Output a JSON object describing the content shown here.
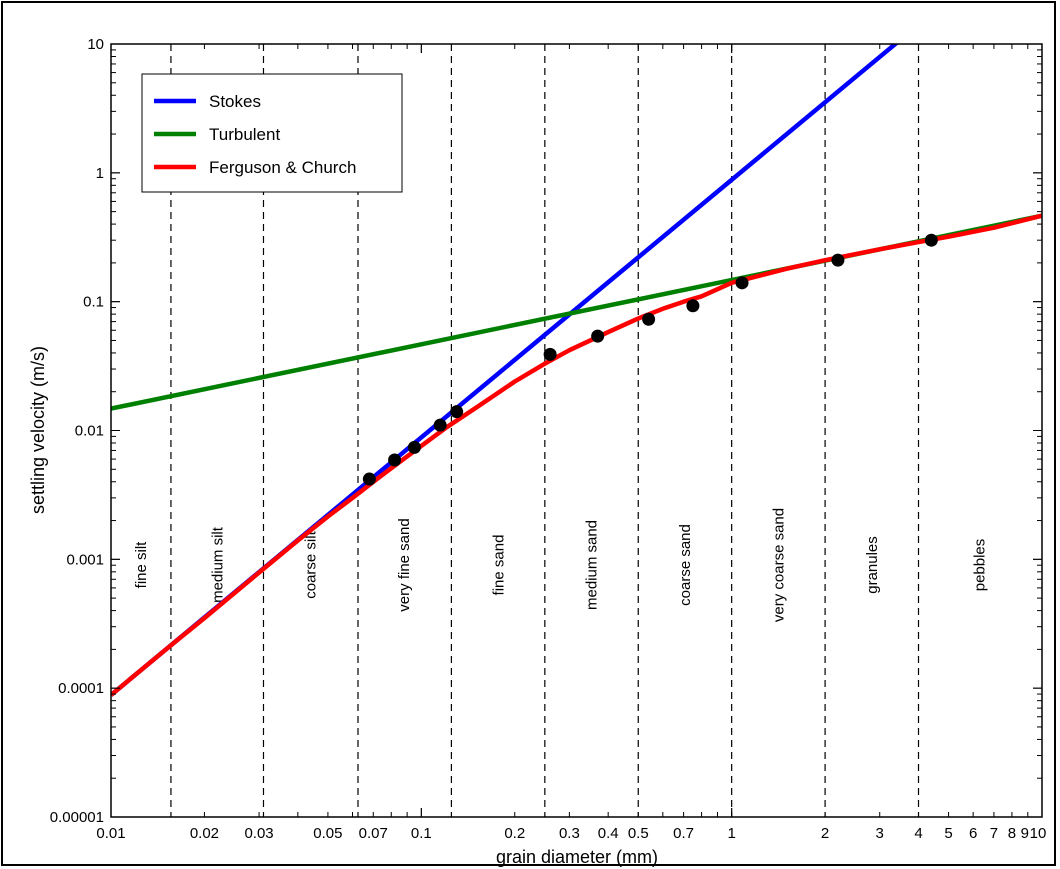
{
  "chart_data": {
    "type": "line",
    "x_scale": "log",
    "y_scale": "log",
    "xlim": [
      0.01,
      10
    ],
    "ylim": [
      1e-05,
      10
    ],
    "xlabel": "grain diameter (mm)",
    "ylabel": "settling velocity (m/s)",
    "x_tick_labels": [
      {
        "value": 0.01,
        "label": "0.01"
      },
      {
        "value": 0.02,
        "label": "0.02"
      },
      {
        "value": 0.03,
        "label": "0.03"
      },
      {
        "value": 0.05,
        "label": "0.05"
      },
      {
        "value": 0.07,
        "label": "0.07"
      },
      {
        "value": 0.1,
        "label": "0.1"
      },
      {
        "value": 0.2,
        "label": "0.2"
      },
      {
        "value": 0.3,
        "label": "0.3"
      },
      {
        "value": 0.4,
        "label": "0.4"
      },
      {
        "value": 0.5,
        "label": "0.5"
      },
      {
        "value": 0.7,
        "label": "0.7"
      },
      {
        "value": 1,
        "label": "1"
      },
      {
        "value": 2,
        "label": "2"
      },
      {
        "value": 3,
        "label": "3"
      },
      {
        "value": 4,
        "label": "4"
      },
      {
        "value": 5,
        "label": "5"
      },
      {
        "value": 6,
        "label": "6"
      },
      {
        "value": 7,
        "label": "7"
      },
      {
        "value": 8,
        "label": "8"
      },
      {
        "value": 9,
        "label": "9"
      },
      {
        "value": 10,
        "label": "10"
      }
    ],
    "y_tick_labels": [
      {
        "value": 10,
        "label": "10"
      },
      {
        "value": 1,
        "label": "1"
      },
      {
        "value": 0.1,
        "label": "0.1"
      },
      {
        "value": 0.01,
        "label": "0.01"
      },
      {
        "value": 0.001,
        "label": "0.001"
      },
      {
        "value": 0.0001,
        "label": "0.0001"
      },
      {
        "value": 1e-05,
        "label": "0.00001"
      }
    ],
    "boundaries": [
      0.0156,
      0.031,
      0.0625,
      0.125,
      0.25,
      0.5,
      1,
      2,
      4
    ],
    "zones": [
      {
        "label": "fine silt",
        "x": 0.0125
      },
      {
        "label": "medium silt",
        "x": 0.022
      },
      {
        "label": "coarse silt",
        "x": 0.044
      },
      {
        "label": "very fine sand",
        "x": 0.088
      },
      {
        "label": "fine sand",
        "x": 0.177
      },
      {
        "label": "medium sand",
        "x": 0.354
      },
      {
        "label": "coarse sand",
        "x": 0.707
      },
      {
        "label": "very coarse sand",
        "x": 1.414
      },
      {
        "label": "granules",
        "x": 2.83
      },
      {
        "label": "pebbles",
        "x": 6.3
      }
    ],
    "series": [
      {
        "name": "Stokes",
        "color": "#0000ff",
        "x": [
          0.01,
          3.4
        ],
        "y": [
          8.85e-05,
          10.2
        ]
      },
      {
        "name": "Turbulent",
        "color": "#008000",
        "x": [
          0.01,
          10
        ],
        "y": [
          0.0148,
          0.465
        ]
      },
      {
        "name": "Ferguson & Church",
        "color": "#ff0000",
        "x": [
          0.01,
          0.0156,
          0.02,
          0.03,
          0.04,
          0.05,
          0.06,
          0.07,
          0.08,
          0.09,
          0.1,
          0.12,
          0.15,
          0.2,
          0.25,
          0.3,
          0.4,
          0.5,
          0.6,
          0.7,
          0.8,
          1,
          1.5,
          2,
          3,
          4,
          5,
          7,
          10
        ],
        "y": [
          8.85e-05,
          0.000215,
          0.00035,
          0.00079,
          0.0014,
          0.00215,
          0.003,
          0.004,
          0.0051,
          0.0063,
          0.0076,
          0.0105,
          0.015,
          0.024,
          0.033,
          0.042,
          0.058,
          0.074,
          0.088,
          0.1,
          0.11,
          0.14,
          0.18,
          0.21,
          0.255,
          0.29,
          0.32,
          0.375,
          0.465
        ]
      },
      {
        "name": "",
        "color": "#000000",
        "type": "scatter",
        "x": [
          0.068,
          0.082,
          0.095,
          0.115,
          0.13,
          0.26,
          0.37,
          0.54,
          0.75,
          1.08,
          2.2,
          4.4
        ],
        "y": [
          0.0042,
          0.0059,
          0.0074,
          0.011,
          0.014,
          0.039,
          0.054,
          0.073,
          0.093,
          0.14,
          0.21,
          0.3
        ]
      }
    ],
    "legend": {
      "position": "top-left",
      "entries": [
        {
          "label": "Stokes",
          "color": "#0000ff"
        },
        {
          "label": "Turbulent",
          "color": "#008000"
        },
        {
          "label": "Ferguson & Church",
          "color": "#ff0000"
        }
      ]
    },
    "grid": false
  }
}
